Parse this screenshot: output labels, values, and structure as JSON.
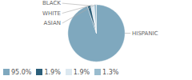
{
  "chart_data": {
    "type": "pie",
    "categories": [
      "HISPANIC",
      "BLACK",
      "WHITE",
      "ASIAN"
    ],
    "values": [
      95.0,
      1.9,
      1.9,
      1.3
    ],
    "value_labels": [
      "95.0%",
      "1.9%",
      "1.9%",
      "1.3%"
    ],
    "colors": [
      "#7fa8be",
      "#2c5f7a",
      "#dce8f0",
      "#9abcce"
    ],
    "legend": "lower left"
  }
}
